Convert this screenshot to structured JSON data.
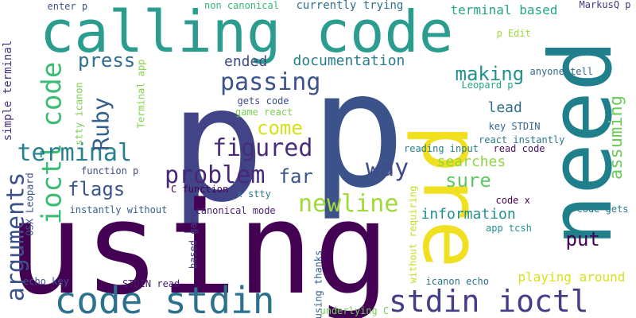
{
  "words": [
    {
      "text": "p",
      "color": "#414487",
      "rot": 0
    },
    {
      "text": "p",
      "color": "#3b528b",
      "rot": 0
    },
    {
      "text": "using",
      "color": "#440154",
      "rot": 0
    },
    {
      "text": "calling code",
      "color": "#2a9d8f",
      "rot": 0
    },
    {
      "text": "need",
      "color": "#1f7f8b",
      "rot": -90
    },
    {
      "text": "pre",
      "color": "#f0e020",
      "rot": 90
    },
    {
      "text": "code stdin",
      "color": "#2c728e",
      "rot": 0
    },
    {
      "text": "stdin ioctl",
      "color": "#433e85",
      "rot": 0
    },
    {
      "text": "ioctl code",
      "color": "#3dbc74",
      "rot": -90
    },
    {
      "text": "arguments",
      "color": "#3b528b",
      "rot": -90
    },
    {
      "text": "passing",
      "color": "#3b528b",
      "rot": 0
    },
    {
      "text": "problem",
      "color": "#482878",
      "rot": 0
    },
    {
      "text": "figured",
      "color": "#472d7b",
      "rot": 0
    },
    {
      "text": "newline",
      "color": "#a0da39",
      "rot": 0
    },
    {
      "text": "terminal",
      "color": "#27808e",
      "rot": 0
    },
    {
      "text": "way",
      "color": "#3e4c8a",
      "rot": 0
    },
    {
      "text": "press",
      "color": "#2e6e8e",
      "rot": 0
    },
    {
      "text": "making",
      "color": "#21918c",
      "rot": 0
    },
    {
      "text": "Ruby",
      "color": "#355f8d",
      "rot": -90
    },
    {
      "text": "come",
      "color": "#d5e21a",
      "rot": 0
    },
    {
      "text": "far",
      "color": "#3b528b",
      "rot": 0
    },
    {
      "text": "flags",
      "color": "#39568c",
      "rot": 0
    },
    {
      "text": "sure",
      "color": "#5ec962",
      "rot": 0
    },
    {
      "text": "put",
      "color": "#440154",
      "rot": 0
    },
    {
      "text": "assuming",
      "color": "#6ccd5a",
      "rot": -90
    },
    {
      "text": "documentation",
      "color": "#287d8e",
      "rot": 0
    },
    {
      "text": "ended",
      "color": "#3e4a89",
      "rot": 0
    },
    {
      "text": "lead",
      "color": "#2e6f8e",
      "rot": 0
    },
    {
      "text": "information",
      "color": "#218f8d",
      "rot": 0
    },
    {
      "text": "searches",
      "color": "#8fd744",
      "rot": 0
    },
    {
      "text": "playing around",
      "color": "#d8e219",
      "rot": 0
    },
    {
      "text": "currently trying",
      "color": "#2d708e",
      "rot": 0
    },
    {
      "text": "terminal based",
      "color": "#22a785",
      "rot": 0
    },
    {
      "text": "non canonical",
      "color": "#34b679",
      "rot": 0
    },
    {
      "text": "enter p",
      "color": "#3b528b",
      "rot": 0
    },
    {
      "text": "MarkusQ p",
      "color": "#443983",
      "rot": 0
    },
    {
      "text": "p Edit",
      "color": "#9bd93c",
      "rot": 0
    },
    {
      "text": "anyone tell",
      "color": "#31688e",
      "rot": 0
    },
    {
      "text": "Leopard p",
      "color": "#22a884",
      "rot": 0
    },
    {
      "text": "key STDIN",
      "color": "#31688e",
      "rot": 0
    },
    {
      "text": "react instantly",
      "color": "#2a788e",
      "rot": 0
    },
    {
      "text": "reading input",
      "color": "#287d8e",
      "rot": 0
    },
    {
      "text": "read code",
      "color": "#471365",
      "rot": 0
    },
    {
      "text": "gets code",
      "color": "#3e4989",
      "rot": 0
    },
    {
      "text": "game react",
      "color": "#7ad151",
      "rot": 0
    },
    {
      "text": "stty icanon",
      "color": "#7ad151",
      "rot": -90
    },
    {
      "text": "Terminal app",
      "color": "#86d549",
      "rot": -90
    },
    {
      "text": "simple terminal",
      "color": "#472f7d",
      "rot": -90
    },
    {
      "text": "function p",
      "color": "#3e4989",
      "rot": 0
    },
    {
      "text": "C function",
      "color": "#440154",
      "rot": 0
    },
    {
      "text": "x stty",
      "color": "#2a788e",
      "rot": 0
    },
    {
      "text": "OSX Leopard",
      "color": "#3b528b",
      "rot": -90
    },
    {
      "text": "instantly without",
      "color": "#355f8d",
      "rot": 0
    },
    {
      "text": "canonical mode",
      "color": "#482475",
      "rot": 0
    },
    {
      "text": "based game",
      "color": "#453781",
      "rot": -90
    },
    {
      "text": "using thanks",
      "color": "#35608d",
      "rot": -90
    },
    {
      "text": "without requiring",
      "color": "#c2df23",
      "rot": -90
    },
    {
      "text": "code x",
      "color": "#440154",
      "rot": 0
    },
    {
      "text": "code gets",
      "color": "#2a788e",
      "rot": 0
    },
    {
      "text": "app tcsh",
      "color": "#218f8d",
      "rot": 0
    },
    {
      "text": "echo key",
      "color": "#3b528b",
      "rot": 0
    },
    {
      "text": "STDIN read",
      "color": "#481a6c",
      "rot": 0
    },
    {
      "text": "icanon echo",
      "color": "#2c728e",
      "rot": 0
    },
    {
      "text": "underlying C",
      "color": "#73d056",
      "rot": 0
    }
  ]
}
